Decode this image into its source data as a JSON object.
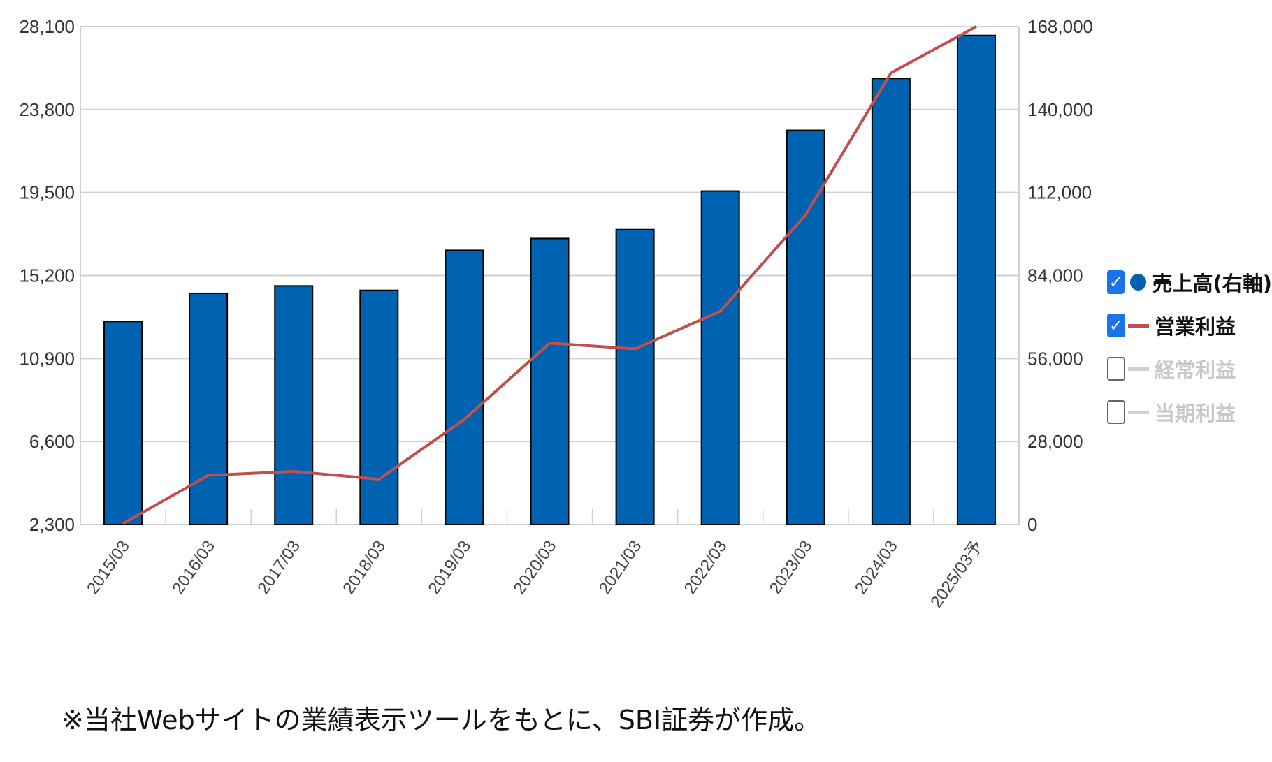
{
  "chart_data": {
    "type": "bar",
    "categories": [
      "2015/03",
      "2016/03",
      "2017/03",
      "2018/03",
      "2019/03",
      "2020/03",
      "2021/03",
      "2022/03",
      "2023/03",
      "2024/03",
      "2025/03予"
    ],
    "series": [
      {
        "name": "売上高(右軸)",
        "type": "bar",
        "axis": "right",
        "color": "#0063b1",
        "values": [
          68500,
          78000,
          80500,
          79000,
          92500,
          96500,
          99500,
          112500,
          133000,
          150500,
          165000
        ]
      },
      {
        "name": "営業利益",
        "type": "line",
        "axis": "left",
        "color": "#c0504d",
        "values": [
          2350,
          4850,
          5050,
          4650,
          7750,
          11700,
          11400,
          13350,
          18350,
          25700,
          28100
        ]
      }
    ],
    "left_axis": {
      "ylim": [
        2300,
        28100
      ],
      "ticks": [
        "2,300",
        "6,600",
        "10,900",
        "15,200",
        "19,500",
        "23,800",
        "28,100"
      ]
    },
    "right_axis": {
      "ylim": [
        0,
        168000
      ],
      "ticks": [
        "0",
        "28,000",
        "56,000",
        "84,000",
        "112,000",
        "140,000",
        "168,000"
      ]
    },
    "grid": true,
    "legend_position": "right"
  },
  "legend": [
    {
      "label": "売上高(右軸)",
      "checked": true,
      "symbol": "dot",
      "color": "#0063b1"
    },
    {
      "label": "営業利益",
      "checked": true,
      "symbol": "line",
      "color": "#c0504d"
    },
    {
      "label": "経常利益",
      "checked": false,
      "symbol": "line",
      "color": "#cfcfcf"
    },
    {
      "label": "当期利益",
      "checked": false,
      "symbol": "line",
      "color": "#cfcfcf"
    }
  ],
  "footnote": "※当社Webサイトの業績表示ツールをもとに、SBI証券が作成。"
}
